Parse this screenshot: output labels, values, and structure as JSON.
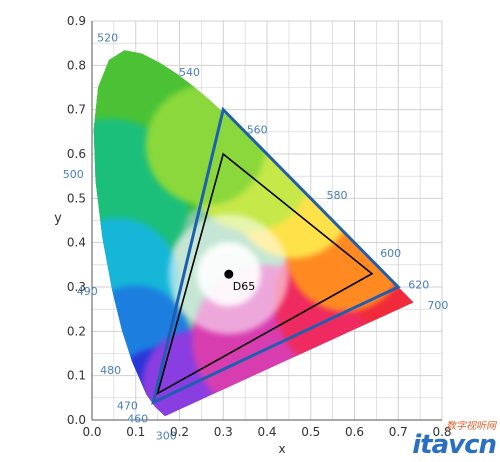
{
  "chart_data": {
    "type": "scatter",
    "title": "",
    "xlabel": "x",
    "ylabel": "y",
    "xlim": [
      0.0,
      0.8
    ],
    "ylim": [
      0.0,
      0.9
    ],
    "x_ticks": [
      "0.0",
      "0.1",
      "0.2",
      "0.3",
      "0.4",
      "0.5",
      "0.6",
      "0.7",
      "0.8"
    ],
    "y_ticks": [
      "0.0",
      "0.1",
      "0.2",
      "0.3",
      "0.4",
      "0.5",
      "0.6",
      "0.7",
      "0.8",
      "0.9"
    ],
    "grid": true,
    "spectral_locus": [
      {
        "x": 0.1666,
        "y": 0.0089
      },
      {
        "x": 0.144,
        "y": 0.0297,
        "label": "460"
      },
      {
        "x": 0.1241,
        "y": 0.0578,
        "label": "470"
      },
      {
        "x": 0.0913,
        "y": 0.1327,
        "label": "480"
      },
      {
        "x": 0.0687,
        "y": 0.2007
      },
      {
        "x": 0.0454,
        "y": 0.295,
        "label": "490"
      },
      {
        "x": 0.0235,
        "y": 0.4127
      },
      {
        "x": 0.0082,
        "y": 0.5384,
        "label": "500"
      },
      {
        "x": 0.0039,
        "y": 0.6548
      },
      {
        "x": 0.0139,
        "y": 0.7502
      },
      {
        "x": 0.0389,
        "y": 0.812
      },
      {
        "x": 0.0743,
        "y": 0.8338,
        "label": "520"
      },
      {
        "x": 0.1142,
        "y": 0.8262
      },
      {
        "x": 0.1547,
        "y": 0.8059
      },
      {
        "x": 0.1929,
        "y": 0.7816
      },
      {
        "x": 0.2296,
        "y": 0.7543,
        "label": "540"
      },
      {
        "x": 0.2658,
        "y": 0.7243
      },
      {
        "x": 0.3016,
        "y": 0.6923
      },
      {
        "x": 0.3373,
        "y": 0.6589
      },
      {
        "x": 0.3731,
        "y": 0.6245,
        "label": "560"
      },
      {
        "x": 0.4087,
        "y": 0.5896
      },
      {
        "x": 0.4441,
        "y": 0.5547
      },
      {
        "x": 0.4788,
        "y": 0.5202
      },
      {
        "x": 0.5125,
        "y": 0.4866,
        "label": "580"
      },
      {
        "x": 0.5448,
        "y": 0.4544
      },
      {
        "x": 0.5752,
        "y": 0.4242
      },
      {
        "x": 0.6029,
        "y": 0.3965
      },
      {
        "x": 0.627,
        "y": 0.3725,
        "label": "600"
      },
      {
        "x": 0.6482,
        "y": 0.3514
      },
      {
        "x": 0.6658,
        "y": 0.334
      },
      {
        "x": 0.6915,
        "y": 0.3083,
        "label": "620"
      },
      {
        "x": 0.7079,
        "y": 0.292
      },
      {
        "x": 0.7347,
        "y": 0.2653,
        "label": "700"
      }
    ],
    "wavelength_labels": [
      {
        "text": "300",
        "x": 0.205,
        "y": -0.005
      },
      {
        "text": "460",
        "x": 0.145,
        "y": 0.03
      },
      {
        "text": "470",
        "x": 0.124,
        "y": 0.058
      },
      {
        "text": "480",
        "x": 0.091,
        "y": 0.133
      },
      {
        "text": "490",
        "x": 0.045,
        "y": 0.295
      },
      {
        "text": "500",
        "x": 0.008,
        "y": 0.538
      },
      {
        "text": "520",
        "x": 0.074,
        "y": 0.834
      },
      {
        "text": "540",
        "x": 0.23,
        "y": 0.754
      },
      {
        "text": "560",
        "x": 0.373,
        "y": 0.624
      },
      {
        "text": "580",
        "x": 0.512,
        "y": 0.487
      },
      {
        "text": "600",
        "x": 0.627,
        "y": 0.372
      },
      {
        "text": "620",
        "x": 0.691,
        "y": 0.308
      },
      {
        "text": "700",
        "x": 0.735,
        "y": 0.265
      }
    ],
    "series": [
      {
        "points": [
          {
            "x": 0.3,
            "y": 0.7
          },
          {
            "x": 0.7,
            "y": 0.3
          },
          {
            "x": 0.14,
            "y": 0.04
          }
        ],
        "color": "#1f5fb0"
      },
      {
        "points": [
          {
            "x": 0.3,
            "y": 0.6
          },
          {
            "x": 0.64,
            "y": 0.33
          },
          {
            "x": 0.15,
            "y": 0.06
          }
        ],
        "color": "#000000"
      }
    ],
    "white_point": {
      "label": "D65",
      "x": 0.3127,
      "y": 0.329
    }
  },
  "colors": {
    "locus_label": "#4a7fc1",
    "tick_label": "#333333",
    "grid": "#d0d0d0"
  },
  "watermark": {
    "chinese": "数字视听网",
    "logo": "itavcn"
  }
}
